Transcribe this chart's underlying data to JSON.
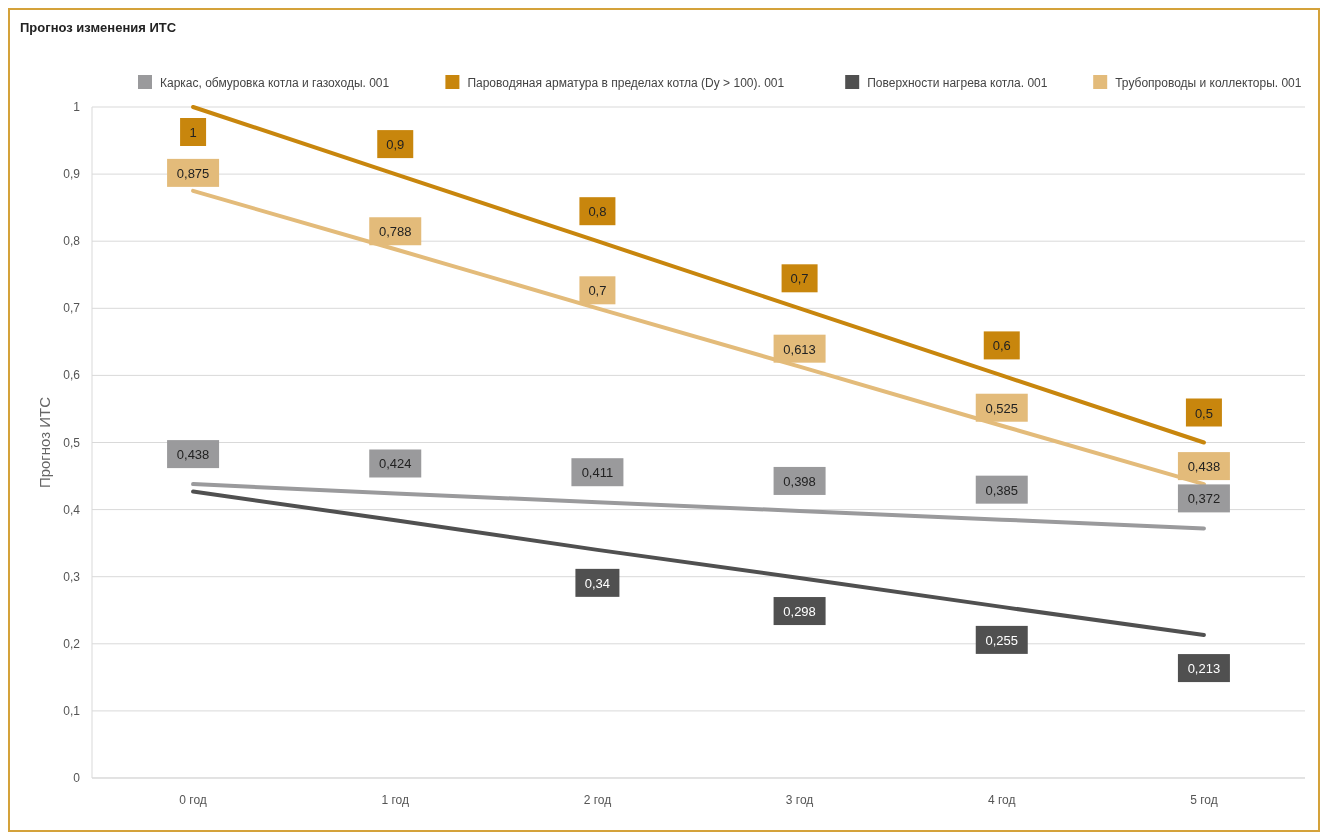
{
  "chart_data": {
    "type": "line",
    "title": "Прогноз изменения ИТС",
    "ylabel": "Прогноз ИТС",
    "categories": [
      "0 год",
      "1 год",
      "2 год",
      "3 год",
      "4 год",
      "5 год"
    ],
    "series": [
      {
        "name": "Каркас, обмуровка котла и газоходы. 001",
        "color": "#9a9a9c",
        "values": [
          0.438,
          0.424,
          0.411,
          0.398,
          0.385,
          0.372
        ],
        "value_labels": [
          "0,438",
          "0,424",
          "0,411",
          "0,398",
          "0,385",
          "0,372"
        ]
      },
      {
        "name": "Пароводяная арматура в пределах котла (Dy > 100). 001",
        "color": "#c8860d",
        "values": [
          1,
          0.9,
          0.8,
          0.7,
          0.6,
          0.5
        ],
        "value_labels": [
          "1",
          "0,9",
          "0,8",
          "0,7",
          "0,6",
          "0,5"
        ]
      },
      {
        "name": "Поверхности нагрева котла. 001",
        "color": "#505050",
        "values": [
          0.427,
          0.384,
          0.34,
          0.298,
          0.255,
          0.213
        ],
        "value_labels": [
          null,
          null,
          "0,34",
          "0,298",
          "0,255",
          "0,213"
        ]
      },
      {
        "name": "Трубопроводы и коллекторы. 001",
        "color": "#e3bb7a",
        "values": [
          0.875,
          0.788,
          0.7,
          0.613,
          0.525,
          0.438
        ],
        "value_labels": [
          "0,875",
          "0,788",
          "0,7",
          "0,613",
          "0,525",
          "0,438"
        ]
      }
    ],
    "ylim": [
      0,
      1
    ],
    "yticks": [
      {
        "value": 0,
        "label": "0"
      },
      {
        "value": 0.1,
        "label": "0,1"
      },
      {
        "value": 0.2,
        "label": "0,2"
      },
      {
        "value": 0.3,
        "label": "0,3"
      },
      {
        "value": 0.4,
        "label": "0,4"
      },
      {
        "value": 0.5,
        "label": "0,5"
      },
      {
        "value": 0.6,
        "label": "0,6"
      },
      {
        "value": 0.7,
        "label": "0,7"
      },
      {
        "value": 0.8,
        "label": "0,8"
      },
      {
        "value": 0.9,
        "label": "0,9"
      },
      {
        "value": 1,
        "label": "1"
      }
    ],
    "grid": "y",
    "legend": "top",
    "marker": "none",
    "line_style": "solid"
  }
}
